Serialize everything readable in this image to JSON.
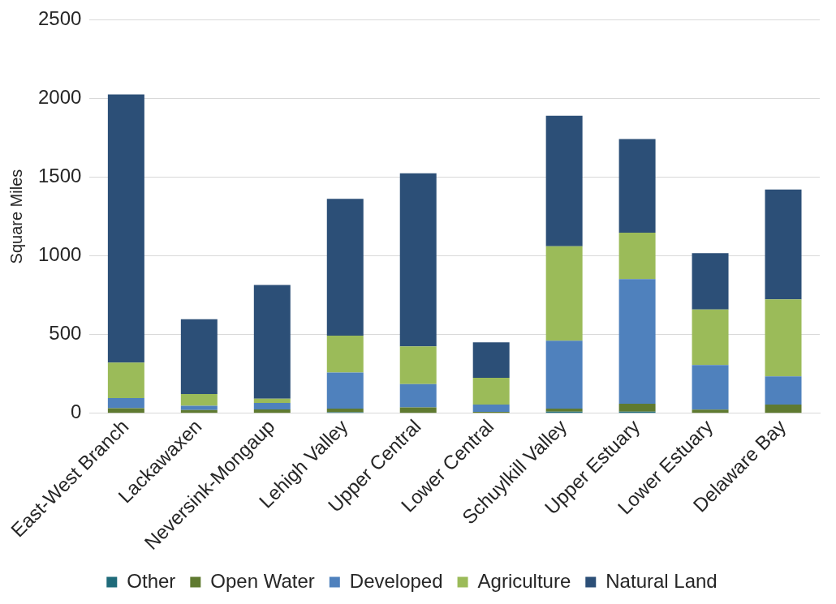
{
  "chart_data": {
    "type": "bar",
    "stacked": true,
    "ylabel": "Square Miles",
    "categories": [
      "East-West Branch",
      "Lackawaxen",
      "Neversink-Mongaup",
      "Lehigh Valley",
      "Upper Central",
      "Lower Central",
      "Schuylkill Valley",
      "Upper Estuary",
      "Lower Estuary",
      "Delaware Bay"
    ],
    "series": [
      {
        "name": "Other",
        "color": "#1f6b7a",
        "values": [
          null,
          3,
          3,
          7,
          3,
          null,
          11,
          10,
          3,
          3
        ]
      },
      {
        "name": "Open Water",
        "color": "#5f7a30",
        "values": [
          32,
          18,
          22,
          23,
          34,
          9,
          19,
          51,
          20,
          52
        ]
      },
      {
        "name": "Developed",
        "color": "#4f81bd",
        "values": [
          65,
          27,
          41,
          229,
          149,
          46,
          431,
          791,
          284,
          179
        ]
      },
      {
        "name": "Agriculture",
        "color": "#9bbb59",
        "values": [
          225,
          75,
          27,
          234,
          239,
          170,
          600,
          295,
          352,
          490
        ]
      },
      {
        "name": "Natural Land",
        "color": "#2c4f77",
        "values": [
          1703,
          474,
          722,
          870,
          1100,
          226,
          829,
          595,
          359,
          698
        ]
      }
    ],
    "ylim": [
      0,
      2500
    ],
    "yticks": [
      0,
      500,
      1000,
      1500,
      2000,
      2500
    ],
    "grid": "y",
    "legend": "bottom"
  }
}
